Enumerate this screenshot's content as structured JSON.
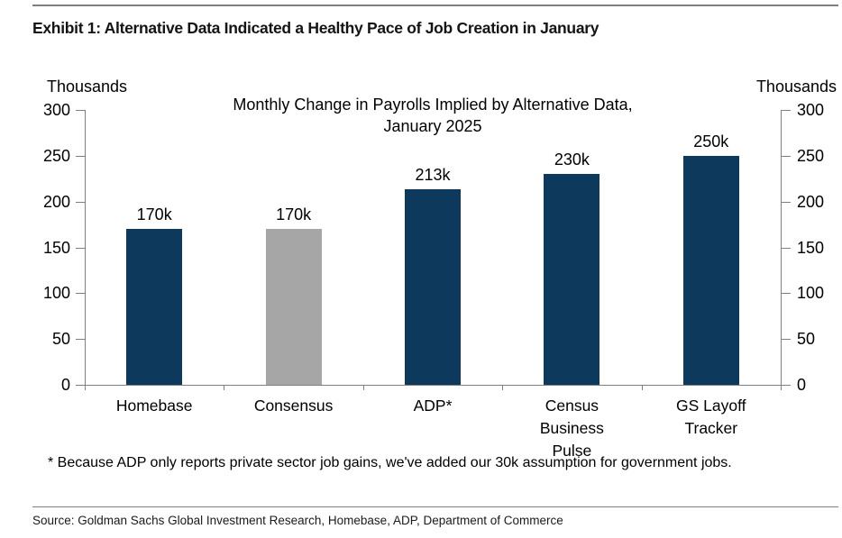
{
  "header": {
    "title": "Exhibit 1: Alternative Data Indicated a Healthy Pace of Job Creation in January"
  },
  "chart_data": {
    "type": "bar",
    "title_line1": "Monthly Change in Payrolls Implied by Alternative Data,",
    "title_line2": "January 2025",
    "axis_unit_left": "Thousands",
    "axis_unit_right": "Thousands",
    "ylabel": "Thousands",
    "ylim": [
      0,
      300
    ],
    "yticks": [
      0,
      50,
      100,
      150,
      200,
      250,
      300
    ],
    "grid": "off",
    "legend": "none",
    "categories": [
      "Homebase",
      "Consensus",
      "ADP*",
      "Census\nBusiness\nPulse",
      "GS Layoff\nTracker"
    ],
    "values": [
      170,
      170,
      213,
      230,
      250
    ],
    "value_labels": [
      "170k",
      "170k",
      "213k",
      "230k",
      "250k"
    ],
    "bar_colors": [
      "#0d3a5c",
      "#a6a6a6",
      "#0d3a5c",
      "#0d3a5c",
      "#0d3a5c"
    ],
    "colors": {
      "navy": "#0d3a5c",
      "gray": "#a6a6a6",
      "axis": "#808080"
    }
  },
  "footnote": "* Because ADP only reports private sector job gains, we've added our 30k assumption for government jobs.",
  "source": "Source: Goldman Sachs Global Investment Research, Homebase, ADP, Department of Commerce"
}
